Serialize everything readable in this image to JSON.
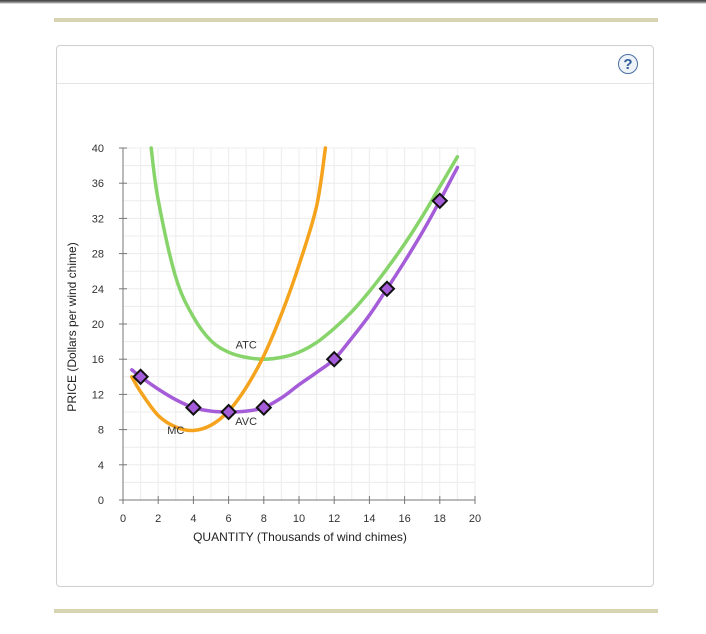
{
  "help": {
    "label": "?"
  },
  "chart_data": {
    "type": "line",
    "xlabel": "QUANTITY (Thousands of wind chimes)",
    "ylabel": "PRICE (Dollars per wind chime)",
    "xlim": [
      0,
      20
    ],
    "ylim": [
      0,
      40
    ],
    "xticks": [
      0,
      2,
      4,
      6,
      8,
      10,
      12,
      14,
      16,
      18,
      20
    ],
    "yticks": [
      0,
      4,
      8,
      12,
      16,
      20,
      24,
      28,
      32,
      36,
      40
    ],
    "grid": true,
    "series": [
      {
        "name": "ATC",
        "color": "#86d46a",
        "x": [
          1.6,
          2.0,
          3.0,
          4.0,
          5.0,
          6.0,
          7.0,
          8.0,
          9.0,
          10.0,
          11.0,
          12.0,
          13.0,
          14.0,
          15.0,
          16.0,
          17.0,
          18.0,
          19.0
        ],
        "y": [
          40.0,
          34.1,
          25.3,
          20.8,
          18.1,
          16.8,
          16.2,
          16.0,
          16.2,
          16.8,
          17.9,
          19.5,
          21.4,
          23.7,
          26.3,
          29.1,
          32.2,
          35.6,
          39.0
        ]
      },
      {
        "name": "MC",
        "color": "#f5a21c",
        "x": [
          0.5,
          1.0,
          2.0,
          3.0,
          4.0,
          5.0,
          6.0,
          7.0,
          8.0,
          9.0,
          10.0,
          11.0,
          11.5
        ],
        "y": [
          14.0,
          12.3,
          9.6,
          8.3,
          7.9,
          8.5,
          10.1,
          12.8,
          16.4,
          21.1,
          26.7,
          33.4,
          40.0
        ]
      },
      {
        "name": "AVC",
        "color": "#a55cd8",
        "x": [
          0.5,
          1.0,
          2.0,
          3.0,
          4.0,
          5.0,
          6.0,
          7.0,
          8.0,
          9.0,
          10.0,
          11.0,
          12.0,
          13.0,
          14.0,
          15.0,
          16.0,
          17.0,
          18.0,
          19.0
        ],
        "y": [
          14.8,
          14.0,
          12.6,
          11.4,
          10.5,
          10.1,
          10.0,
          10.1,
          10.5,
          11.6,
          13.1,
          14.5,
          16.0,
          18.4,
          21.0,
          24.0,
          27.1,
          30.4,
          34.0,
          37.8
        ]
      }
    ],
    "markers": {
      "series": "AVC",
      "x": [
        1,
        4,
        6,
        8,
        12,
        15,
        18
      ],
      "y": [
        14,
        10.5,
        10,
        10.5,
        16,
        24,
        34
      ]
    },
    "labels": [
      {
        "text": "ATC",
        "x": 7.0,
        "y": 17.2
      },
      {
        "text": "AVC",
        "x": 7.0,
        "y": 8.5
      },
      {
        "text": "MC",
        "x": 3.0,
        "y": 7.5
      }
    ]
  }
}
